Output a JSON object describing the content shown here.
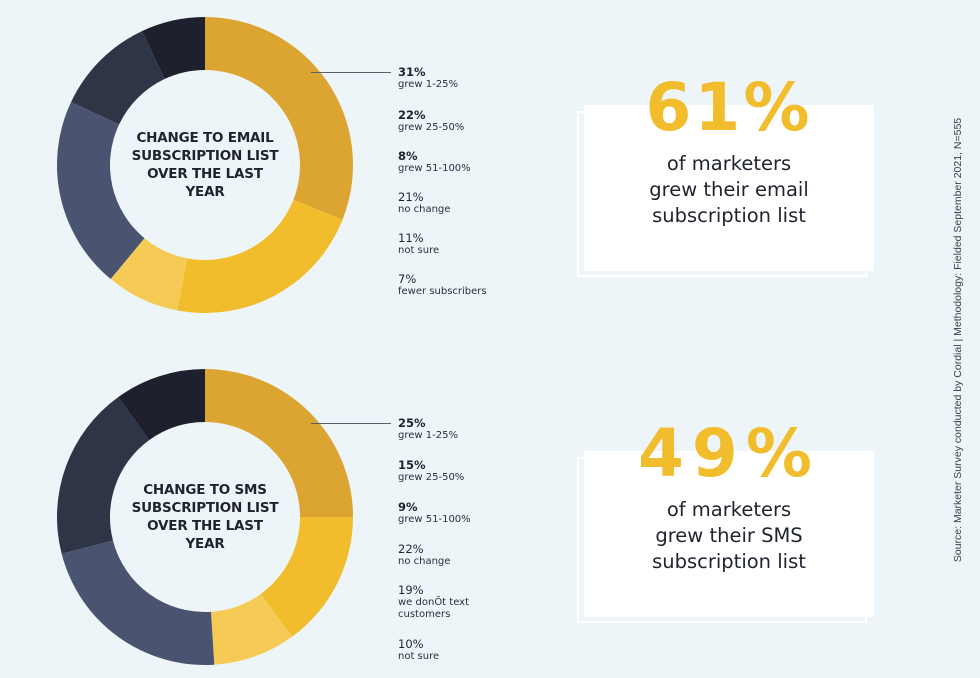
{
  "colors": {
    "background": "#eef5f8",
    "accent_yellow": "#f2bd2c",
    "segments": [
      "#dca531",
      "#f2bd2c",
      "#f6cb55",
      "#4a5370",
      "#2e3547",
      "#1e212d"
    ]
  },
  "chart_data": [
    {
      "type": "pie",
      "subtype": "donut",
      "title": "CHANGE TO EMAIL SUBSCRIPTION LIST OVER THE LAST YEAR",
      "categories": [
        "grew 1-25%",
        "grew 25-50%",
        "grew 51-100%",
        "no change",
        "not sure",
        "fewer subscribers"
      ],
      "values": [
        31,
        22,
        8,
        21,
        11,
        7
      ],
      "unit": "%",
      "legend_position": "right"
    },
    {
      "type": "pie",
      "subtype": "donut",
      "title": "CHANGE TO SMS SUBSCRIPTION LIST OVER THE LAST YEAR",
      "categories": [
        "grew 1-25%",
        "grew 25-50%",
        "grew 51-100%",
        "no change",
        "we donÕt text customers",
        "not sure"
      ],
      "values": [
        25,
        15,
        9,
        22,
        19,
        10
      ],
      "unit": "%",
      "legend_position": "right"
    }
  ],
  "email": {
    "center_title": "CHANGE TO EMAIL SUBSCRIPTION LIST OVER THE LAST YEAR",
    "legend": [
      {
        "pct": "31%",
        "label": "grew 1-25%",
        "bold": true
      },
      {
        "pct": "22%",
        "label": "grew 25-50%",
        "bold": true
      },
      {
        "pct": "8%",
        "label": "grew 51-100%",
        "bold": true
      },
      {
        "pct": "21%",
        "label": "no change",
        "bold": false
      },
      {
        "pct": "11%",
        "label": "not sure",
        "bold": false
      },
      {
        "pct": "7%",
        "label": "fewer subscribers",
        "bold": false
      }
    ],
    "stat": {
      "value": "61%",
      "line1": "of marketers",
      "line2": "grew their email",
      "line3": "subscription list"
    }
  },
  "sms": {
    "center_title": "CHANGE TO SMS SUBSCRIPTION LIST OVER THE LAST YEAR",
    "legend": [
      {
        "pct": "25%",
        "label": "grew 1-25%",
        "bold": true
      },
      {
        "pct": "15%",
        "label": "grew 25-50%",
        "bold": true
      },
      {
        "pct": "9%",
        "label": "grew 51-100%",
        "bold": true
      },
      {
        "pct": "22%",
        "label": "no change",
        "bold": false
      },
      {
        "pct": "19%",
        "label": "we donÕt text",
        "label2": "customers",
        "bold": false
      },
      {
        "pct": "10%",
        "label": "not sure",
        "bold": false
      }
    ],
    "stat": {
      "value": "49%",
      "line1": "of marketers",
      "line2": "grew their SMS",
      "line3": "subscription list"
    }
  },
  "source_text": "Source: Marketer Survey conducted by Cordial  |  Methodology: Fielded September 2021, N=555"
}
